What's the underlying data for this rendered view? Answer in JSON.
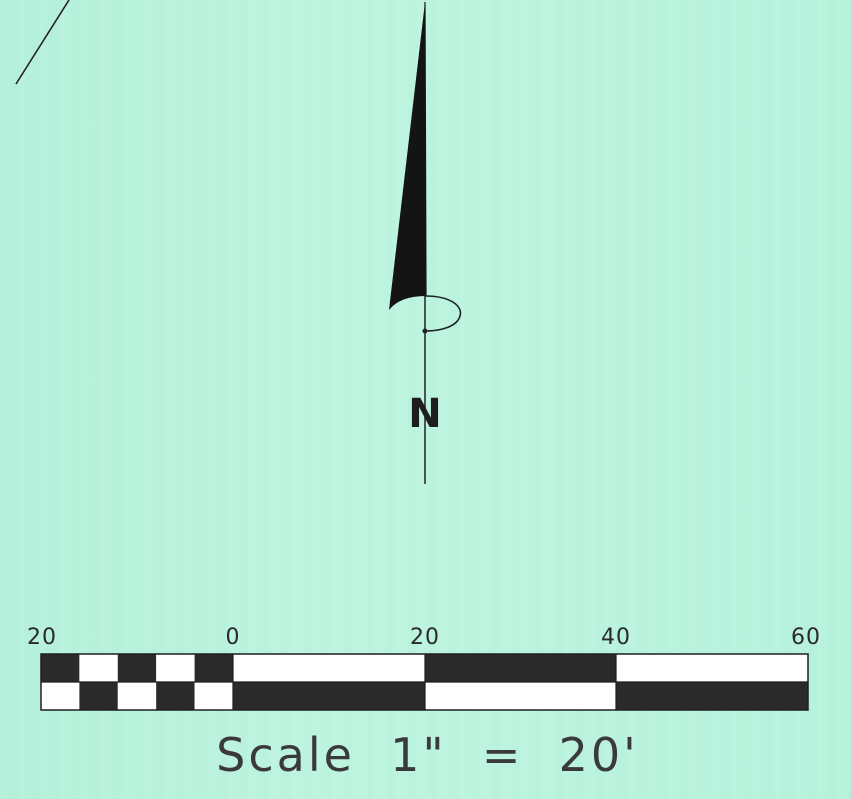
{
  "north_arrow": {
    "letter": "N"
  },
  "scale_bar": {
    "tick_labels": [
      "20",
      "0",
      "20",
      "40",
      "60"
    ],
    "caption": "Scale  1\"  =  20'"
  },
  "colors": {
    "paper": "#b6f2dc",
    "ink": "#1e1e1e",
    "bar_fill": "#2a2a2a"
  }
}
